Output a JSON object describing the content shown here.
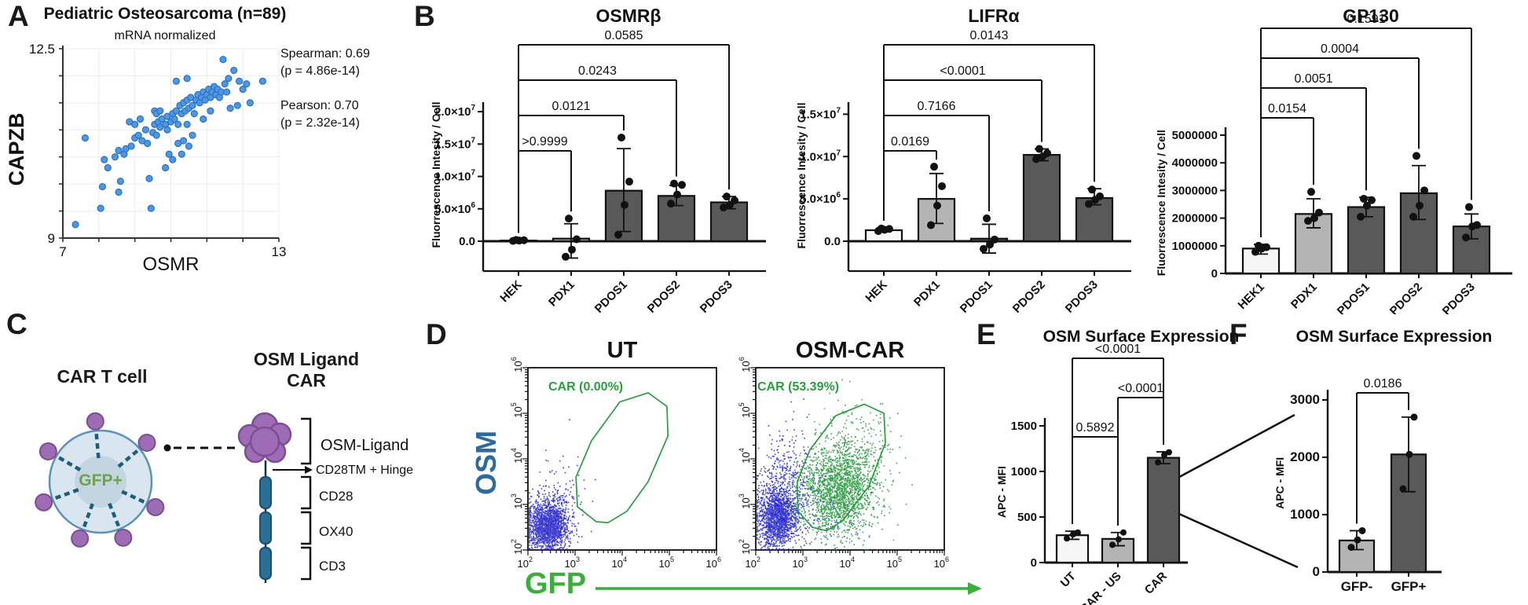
{
  "panels": {
    "a": {
      "letter": "A",
      "title": "Pediatric Osteosarcoma (n=89)",
      "subtitle": "mRNA normalized",
      "stats_line1": "Spearman: 0.69",
      "stats_line2": "(p = 4.86e-14)",
      "stats_line3": "Pearson: 0.70",
      "stats_line4": "(p = 2.32e-14)"
    },
    "b": {
      "letter": "B"
    },
    "c": {
      "letter": "C",
      "cell_title": "CAR T cell",
      "construct_title_line1": "OSM Ligand",
      "construct_title_line2": "CAR",
      "gfp_label": "GFP+",
      "domain_osm_ligand": "OSM-Ligand",
      "domain_cd28tm": "CD28TM + Hinge",
      "domain_cd28": "CD28",
      "domain_ox40": "OX40",
      "domain_cd3": "CD3"
    },
    "d": {
      "letter": "D",
      "y_axis_label": "OSM",
      "x_axis_label": "GFP"
    },
    "e": {
      "letter": "E",
      "title": "OSM Surface Expression"
    },
    "f": {
      "letter": "F",
      "title": "OSM Surface Expression"
    }
  },
  "colors": {
    "scatter_point": "#4f97e0",
    "flow_neg": "#2121cc",
    "flow_pos": "#1e9636",
    "gate": "#2a9d3f",
    "osm_text": "#2d6b9e",
    "gfp_text": "#3cae3c",
    "gfp_plus_text": "#6fa14e",
    "bar_white": "#f7f7f7",
    "bar_lightgray": "#b4b4b4",
    "bar_darkgray": "#595959",
    "purple": "#9d6cb4",
    "receptor_blue": "#2a6f96"
  },
  "chart_data": [
    {
      "id": "scatterA",
      "type": "scatter",
      "title": "Pediatric Osteosarcoma (n=89)",
      "subtitle": "mRNA normalized",
      "xlabel": "OSMR",
      "ylabel": "CAPZB",
      "xlim": [
        7,
        13
      ],
      "ylim": [
        9,
        12.5
      ],
      "x_tick_labels": [
        "7",
        "13"
      ],
      "y_tick_labels": [
        "12.5",
        "9"
      ],
      "grid": true,
      "point_color": "#4f97e0",
      "points": [
        [
          7.35,
          9.25
        ],
        [
          8.05,
          9.55
        ],
        [
          8.1,
          9.95
        ],
        [
          8.25,
          10.3
        ],
        [
          8.15,
          10.45
        ],
        [
          8.45,
          10.5
        ],
        [
          8.55,
          10.62
        ],
        [
          8.7,
          10.55
        ],
        [
          8.75,
          10.65
        ],
        [
          8.9,
          10.7
        ],
        [
          7.62,
          10.85
        ],
        [
          8.6,
          10.05
        ],
        [
          8.55,
          9.85
        ],
        [
          9.45,
          9.55
        ],
        [
          9.4,
          10.1
        ],
        [
          9.0,
          10.85
        ],
        [
          9.1,
          10.9
        ],
        [
          9.2,
          10.8
        ],
        [
          9.3,
          11.0
        ],
        [
          9.5,
          10.95
        ],
        [
          9.35,
          10.75
        ],
        [
          9.55,
          11.1
        ],
        [
          9.6,
          10.9
        ],
        [
          9.65,
          11.15
        ],
        [
          9.7,
          11.05
        ],
        [
          9.75,
          11.2
        ],
        [
          9.85,
          11.1
        ],
        [
          9.9,
          11.25
        ],
        [
          9.55,
          11.35
        ],
        [
          9.6,
          11.3
        ],
        [
          9.7,
          11.35
        ],
        [
          9.9,
          11.0
        ],
        [
          10.0,
          11.15
        ],
        [
          10.05,
          11.3
        ],
        [
          10.1,
          11.2
        ],
        [
          10.15,
          11.35
        ],
        [
          10.2,
          11.1
        ],
        [
          10.25,
          11.45
        ],
        [
          10.3,
          11.3
        ],
        [
          10.35,
          11.5
        ],
        [
          10.4,
          11.35
        ],
        [
          10.45,
          11.55
        ],
        [
          10.5,
          11.4
        ],
        [
          10.55,
          11.6
        ],
        [
          10.6,
          11.45
        ],
        [
          10.65,
          11.3
        ],
        [
          10.7,
          11.55
        ],
        [
          10.75,
          11.65
        ],
        [
          10.8,
          11.5
        ],
        [
          10.85,
          11.6
        ],
        [
          10.9,
          11.7
        ],
        [
          10.95,
          11.55
        ],
        [
          11.0,
          11.65
        ],
        [
          11.05,
          11.75
        ],
        [
          11.1,
          11.6
        ],
        [
          11.15,
          11.7
        ],
        [
          11.2,
          11.8
        ],
        [
          11.25,
          11.65
        ],
        [
          11.3,
          11.75
        ],
        [
          11.35,
          11.6
        ],
        [
          11.4,
          11.7
        ],
        [
          11.5,
          11.85
        ],
        [
          11.55,
          11.7
        ],
        [
          11.6,
          11.95
        ],
        [
          11.45,
          12.3
        ],
        [
          11.75,
          12.1
        ],
        [
          11.9,
          11.9
        ],
        [
          12.0,
          11.75
        ],
        [
          12.1,
          11.85
        ],
        [
          12.55,
          11.9
        ],
        [
          12.2,
          11.5
        ],
        [
          11.85,
          11.45
        ],
        [
          11.65,
          11.4
        ],
        [
          10.2,
          10.75
        ],
        [
          10.35,
          10.8
        ],
        [
          10.5,
          10.7
        ],
        [
          10.3,
          10.55
        ],
        [
          10.6,
          10.9
        ],
        [
          9.95,
          10.55
        ],
        [
          10.05,
          10.45
        ],
        [
          9.85,
          10.3
        ],
        [
          10.45,
          11.1
        ],
        [
          10.9,
          11.2
        ],
        [
          11.1,
          11.35
        ],
        [
          9.15,
          11.2
        ],
        [
          9.0,
          11.1
        ],
        [
          8.85,
          11.15
        ],
        [
          10.15,
          11.9
        ],
        [
          10.45,
          11.95
        ]
      ]
    },
    {
      "id": "barOSMRB",
      "type": "bar",
      "title": "OSMRβ",
      "ylabel": "Fluorrescence Intesity / Cell",
      "categories": [
        "HEK",
        "PDX1",
        "PDOS1",
        "PDOS2",
        "PDOS3"
      ],
      "values": [
        100000,
        400000,
        7800000,
        7000000,
        6000000
      ],
      "points": [
        [
          50000,
          100000,
          150000,
          200000
        ],
        [
          -2400000,
          -1300000,
          300000,
          3500000
        ],
        [
          1000000,
          5600000,
          9200000,
          16000000
        ],
        [
          5800000,
          7200000,
          8700000,
          8900000
        ],
        [
          5200000,
          5600000,
          6300000,
          6900000
        ]
      ],
      "errors": [
        [
          0,
          200000
        ],
        [
          -2600000,
          2700000
        ],
        [
          1500000,
          14300000
        ],
        [
          5500000,
          8600000
        ],
        [
          5000000,
          6900000
        ]
      ],
      "bar_colors": [
        "#f7f7f7",
        "#b4b4b4",
        "#595959",
        "#595959",
        "#595959"
      ],
      "y_ticks": [
        {
          "v": 0,
          "l": "0.0"
        },
        {
          "v": 5000000,
          "l": "5.0×10^6"
        },
        {
          "v": 10000000,
          "l": "1.0×10^7"
        },
        {
          "v": 15000000,
          "l": "1.5×10^7"
        },
        {
          "v": 20000000,
          "l": "2.0×10^7"
        }
      ],
      "ylim": [
        -3500000,
        20500000
      ],
      "brackets": [
        {
          "from": 0,
          "to": 1,
          "label": ">0.9999"
        },
        {
          "from": 0,
          "to": 2,
          "label": "0.0121"
        },
        {
          "from": 0,
          "to": 3,
          "label": "0.0243"
        },
        {
          "from": 0,
          "to": 4,
          "label": "0.0585"
        }
      ]
    },
    {
      "id": "barLIFRA",
      "type": "bar",
      "title": "LIFRα",
      "ylabel": "Fluorrescence Intesity / Cell",
      "categories": [
        "HEK",
        "PDX1",
        "PDOS1",
        "PDOS2",
        "PDOS3"
      ],
      "values": [
        1300000,
        5000000,
        300000,
        10200000,
        5100000
      ],
      "points": [
        [
          1200000,
          1350000,
          1450000,
          1500000
        ],
        [
          1900000,
          4200000,
          6500000,
          8800000
        ],
        [
          -900000,
          -400000,
          200000,
          2700000
        ],
        [
          9700000,
          10000000,
          10400000,
          10900000
        ],
        [
          4400000,
          4900000,
          5300000,
          6100000
        ]
      ],
      "errors": [
        [
          1100000,
          1600000
        ],
        [
          2100000,
          8000000
        ],
        [
          -1400000,
          2000000
        ],
        [
          9500000,
          10900000
        ],
        [
          4300000,
          6200000
        ]
      ],
      "bar_colors": [
        "#f7f7f7",
        "#b4b4b4",
        "#595959",
        "#595959",
        "#595959"
      ],
      "y_ticks": [
        {
          "v": 0,
          "l": "0.0"
        },
        {
          "v": 5000000,
          "l": "5.0×10^6"
        },
        {
          "v": 10000000,
          "l": "1.0×10^7"
        },
        {
          "v": 15000000,
          "l": "1.5×10^7"
        }
      ],
      "ylim": [
        -2500000,
        15500000
      ],
      "brackets": [
        {
          "from": 0,
          "to": 1,
          "label": "0.0169"
        },
        {
          "from": 0,
          "to": 2,
          "label": "0.7166"
        },
        {
          "from": 0,
          "to": 3,
          "label": "<0.0001"
        },
        {
          "from": 0,
          "to": 4,
          "label": "0.0143"
        }
      ]
    },
    {
      "id": "barGP130",
      "type": "bar",
      "title": "GP130",
      "ylabel": "Fluorrescence Intesity / Cell",
      "categories": [
        "HEK1",
        "PDX1",
        "PDOS1",
        "PDOS2",
        "PDOS3"
      ],
      "values": [
        900000,
        2150000,
        2400000,
        2900000,
        1700000
      ],
      "points": [
        [
          780000,
          900000,
          950000,
          1000000
        ],
        [
          1900000,
          2000000,
          2200000,
          2950000
        ],
        [
          2050000,
          2450000,
          2650000,
          2700000
        ],
        [
          2050000,
          2450000,
          3000000,
          4250000
        ],
        [
          1300000,
          1700000,
          1750000,
          2400000
        ]
      ],
      "errors": [
        [
          700000,
          1050000
        ],
        [
          1650000,
          2700000
        ],
        [
          2050000,
          2750000
        ],
        [
          1950000,
          3900000
        ],
        [
          1250000,
          2150000
        ]
      ],
      "bar_colors": [
        "#f7f7f7",
        "#b4b4b4",
        "#595959",
        "#595959",
        "#595959"
      ],
      "y_ticks": [
        {
          "v": 0,
          "l": "0"
        },
        {
          "v": 1000000,
          "l": "1000000"
        },
        {
          "v": 2000000,
          "l": "2000000"
        },
        {
          "v": 3000000,
          "l": "3000000"
        },
        {
          "v": 4000000,
          "l": "4000000"
        },
        {
          "v": 5000000,
          "l": "5000000"
        }
      ],
      "ylim": [
        0,
        5100000
      ],
      "brackets": [
        {
          "from": 0,
          "to": 1,
          "label": "0.0154"
        },
        {
          "from": 0,
          "to": 2,
          "label": "0.0051"
        },
        {
          "from": 0,
          "to": 3,
          "label": "0.0004"
        },
        {
          "from": 0,
          "to": 4,
          "label": "0.1591"
        }
      ]
    },
    {
      "id": "flowUT",
      "type": "flow-scatter",
      "title": "UT",
      "gate_label": "CAR (0.00%)",
      "log_range": [
        2,
        6
      ],
      "axis_tick_exponents": [
        2,
        3,
        4,
        5,
        6
      ],
      "gate": [
        [
          3.45,
          2.62
        ],
        [
          3.05,
          2.95
        ],
        [
          3.02,
          3.6
        ],
        [
          3.35,
          4.4
        ],
        [
          3.95,
          5.25
        ],
        [
          4.55,
          5.45
        ],
        [
          4.95,
          5.15
        ],
        [
          4.97,
          4.5
        ],
        [
          4.55,
          3.5
        ],
        [
          4.1,
          2.85
        ],
        [
          3.7,
          2.6
        ]
      ],
      "clusters": [
        {
          "pop": "neg",
          "n": 1700,
          "cx": 2.42,
          "cy": 2.55,
          "sx": 0.21,
          "sy": 0.27
        },
        {
          "pop": "neg",
          "n": 130,
          "cx": 2.55,
          "cy": 2.95,
          "sx": 0.3,
          "sy": 0.45
        },
        {
          "pop": "neg",
          "n": 40,
          "cx": 2.75,
          "cy": 3.3,
          "sx": 0.3,
          "sy": 0.4
        }
      ],
      "seed": 7
    },
    {
      "id": "flowCAR",
      "type": "flow-scatter",
      "title": "OSM-CAR",
      "gate_label": "CAR (53.39%)",
      "log_range": [
        2,
        6
      ],
      "axis_tick_exponents": [
        2,
        3,
        4,
        5,
        6
      ],
      "gate": [
        [
          3.2,
          2.5
        ],
        [
          2.9,
          2.85
        ],
        [
          2.88,
          3.5
        ],
        [
          3.15,
          4.2
        ],
        [
          3.7,
          4.95
        ],
        [
          4.3,
          5.2
        ],
        [
          4.72,
          5.0
        ],
        [
          4.75,
          4.35
        ],
        [
          4.4,
          3.4
        ],
        [
          3.85,
          2.65
        ],
        [
          3.5,
          2.42
        ]
      ],
      "clusters": [
        {
          "pop": "neg",
          "n": 1500,
          "cx": 2.45,
          "cy": 2.7,
          "sx": 0.22,
          "sy": 0.33
        },
        {
          "pop": "neg",
          "n": 450,
          "cx": 2.6,
          "cy": 3.4,
          "sx": 0.28,
          "sy": 0.6
        },
        {
          "pop": "neg",
          "n": 120,
          "cx": 3.3,
          "cy": 2.9,
          "sx": 0.5,
          "sy": 0.5
        },
        {
          "pop": "pos",
          "n": 2000,
          "cx": 3.75,
          "cy": 3.35,
          "sx": 0.42,
          "sy": 0.5
        },
        {
          "pop": "pos",
          "n": 250,
          "cx": 4.1,
          "cy": 4.2,
          "sx": 0.45,
          "sy": 0.5
        }
      ],
      "seed": 13
    },
    {
      "id": "barE",
      "type": "bar",
      "title": "OSM Surface Expression",
      "ylabel": "APC - MFI",
      "categories": [
        "UT",
        "CAR - US",
        "CAR"
      ],
      "values": [
        300,
        260,
        1150
      ],
      "points": [
        [
          265,
          310,
          330
        ],
        [
          195,
          255,
          330
        ],
        [
          1100,
          1180,
          1210
        ]
      ],
      "errors": [
        [
          255,
          345
        ],
        [
          185,
          330
        ],
        [
          1085,
          1215
        ]
      ],
      "bar_colors": [
        "#f7f7f7",
        "#b4b4b4",
        "#595959"
      ],
      "y_ticks": [
        {
          "v": 0,
          "l": "0"
        },
        {
          "v": 500,
          "l": "500"
        },
        {
          "v": 1000,
          "l": "1000"
        },
        {
          "v": 1500,
          "l": "1500"
        }
      ],
      "ylim": [
        0,
        1550
      ],
      "brackets": [
        {
          "from": 0,
          "to": 1,
          "label": "0.5892"
        },
        {
          "from": 1,
          "to": 2,
          "label": "<0.0001"
        },
        {
          "from": 0,
          "to": 2,
          "label": "<0.0001"
        }
      ]
    },
    {
      "id": "barF",
      "type": "bar",
      "title": "OSM Surface Expression",
      "ylabel": "APC - MFI",
      "categories": [
        "GFP-",
        "GFP+"
      ],
      "values": [
        550,
        2050
      ],
      "points": [
        [
          430,
          560,
          720
        ],
        [
          1450,
          2050,
          2700
        ]
      ],
      "errors": [
        [
          390,
          720
        ],
        [
          1400,
          2700
        ]
      ],
      "bar_colors": [
        "#b4b4b4",
        "#595959"
      ],
      "y_ticks": [
        {
          "v": 0,
          "l": "0"
        },
        {
          "v": 1000,
          "l": "1000"
        },
        {
          "v": 2000,
          "l": "2000"
        },
        {
          "v": 3000,
          "l": "3000"
        }
      ],
      "ylim": [
        0,
        3100
      ],
      "brackets": [
        {
          "from": 0,
          "to": 1,
          "label": "0.0186"
        }
      ]
    }
  ]
}
